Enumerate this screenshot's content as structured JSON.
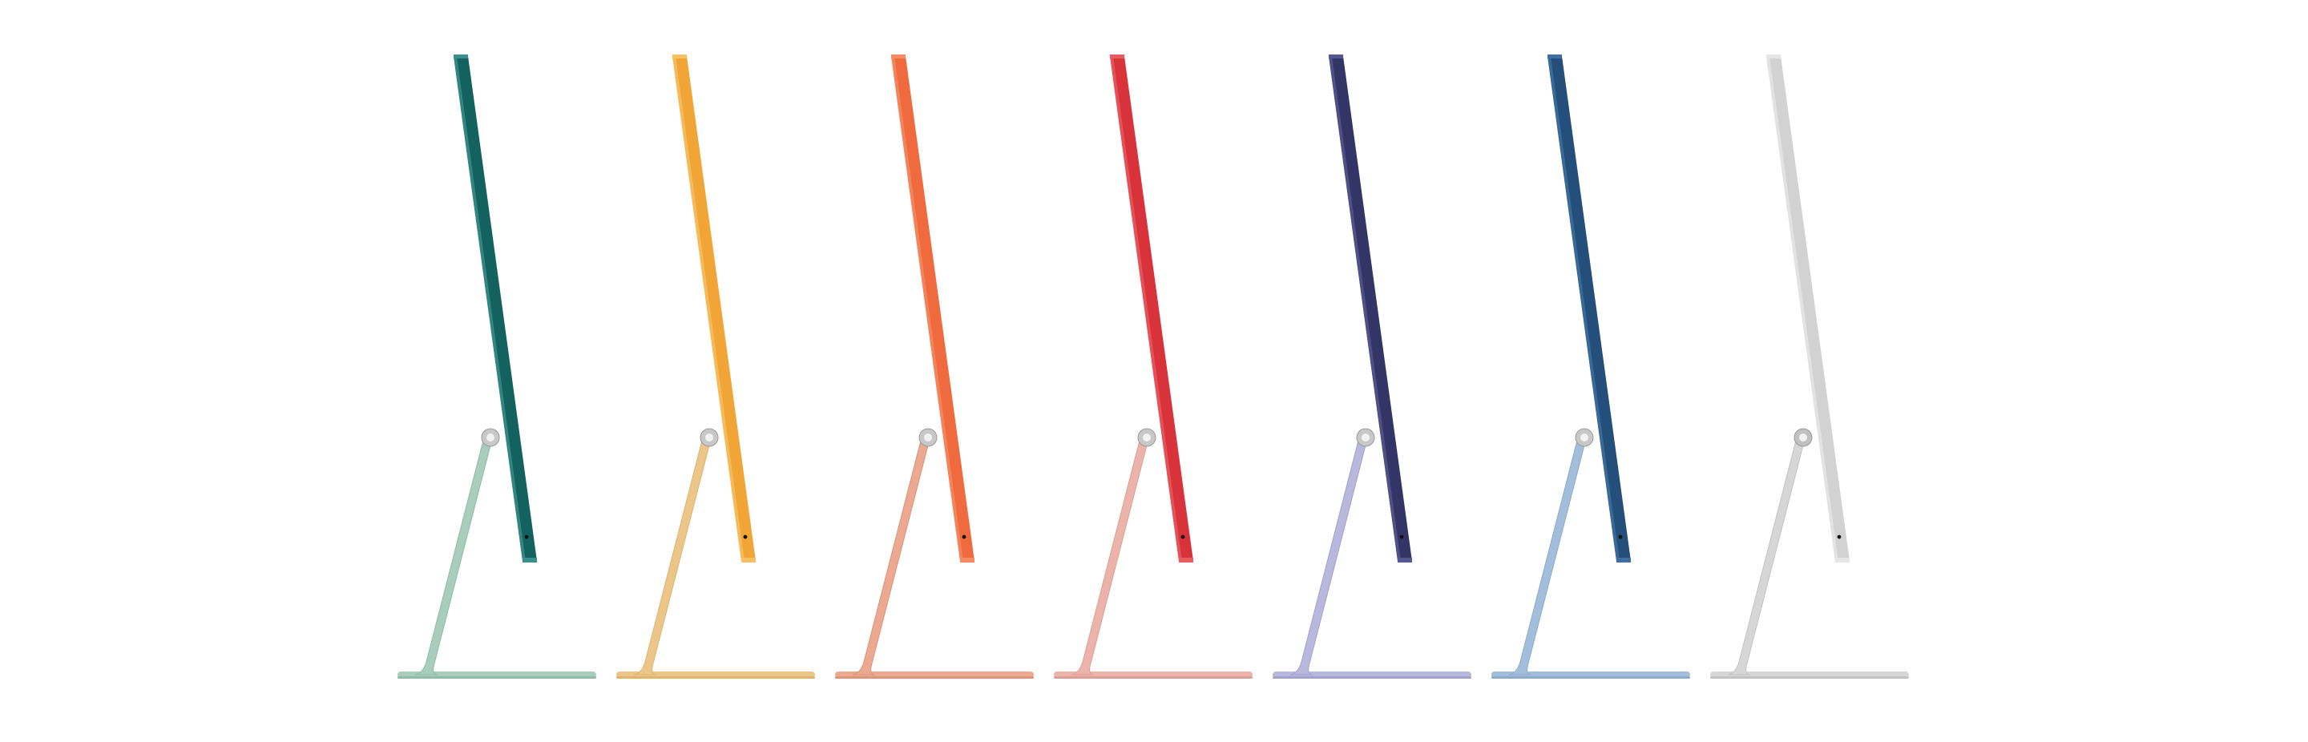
{
  "imacs": [
    {
      "name": "green",
      "display_color": "#14625f",
      "display_edge": "#3a8f8a",
      "stand_color": "#a9cdbd",
      "stand_edge": "#8fbba7",
      "hinge_color": "#c8c8c8"
    },
    {
      "name": "yellow",
      "display_color": "#f0a536",
      "display_edge": "#f6c063",
      "stand_color": "#ebc688",
      "stand_edge": "#dfb46e",
      "hinge_color": "#c8c8c8"
    },
    {
      "name": "orange",
      "display_color": "#ef6b3d",
      "display_edge": "#f58a63",
      "stand_color": "#eaa990",
      "stand_edge": "#dd9378",
      "hinge_color": "#c8c8c8"
    },
    {
      "name": "pink-red",
      "display_color": "#d8323a",
      "display_edge": "#e75a60",
      "stand_color": "#ebb3aa",
      "stand_edge": "#dd9f95",
      "hinge_color": "#c8c8c8"
    },
    {
      "name": "purple",
      "display_color": "#343567",
      "display_edge": "#55578f",
      "stand_color": "#b8b7dc",
      "stand_edge": "#a3a2cc",
      "hinge_color": "#c8c8c8"
    },
    {
      "name": "blue",
      "display_color": "#234f7a",
      "display_edge": "#3f6f9e",
      "stand_color": "#a2bedb",
      "stand_edge": "#8daccb",
      "hinge_color": "#c8c8c8"
    },
    {
      "name": "silver",
      "display_color": "#d2d2d2",
      "display_edge": "#e6e6e6",
      "stand_color": "#d6d6d6",
      "stand_edge": "#c3c3c3",
      "hinge_color": "#c0c0c0"
    }
  ]
}
